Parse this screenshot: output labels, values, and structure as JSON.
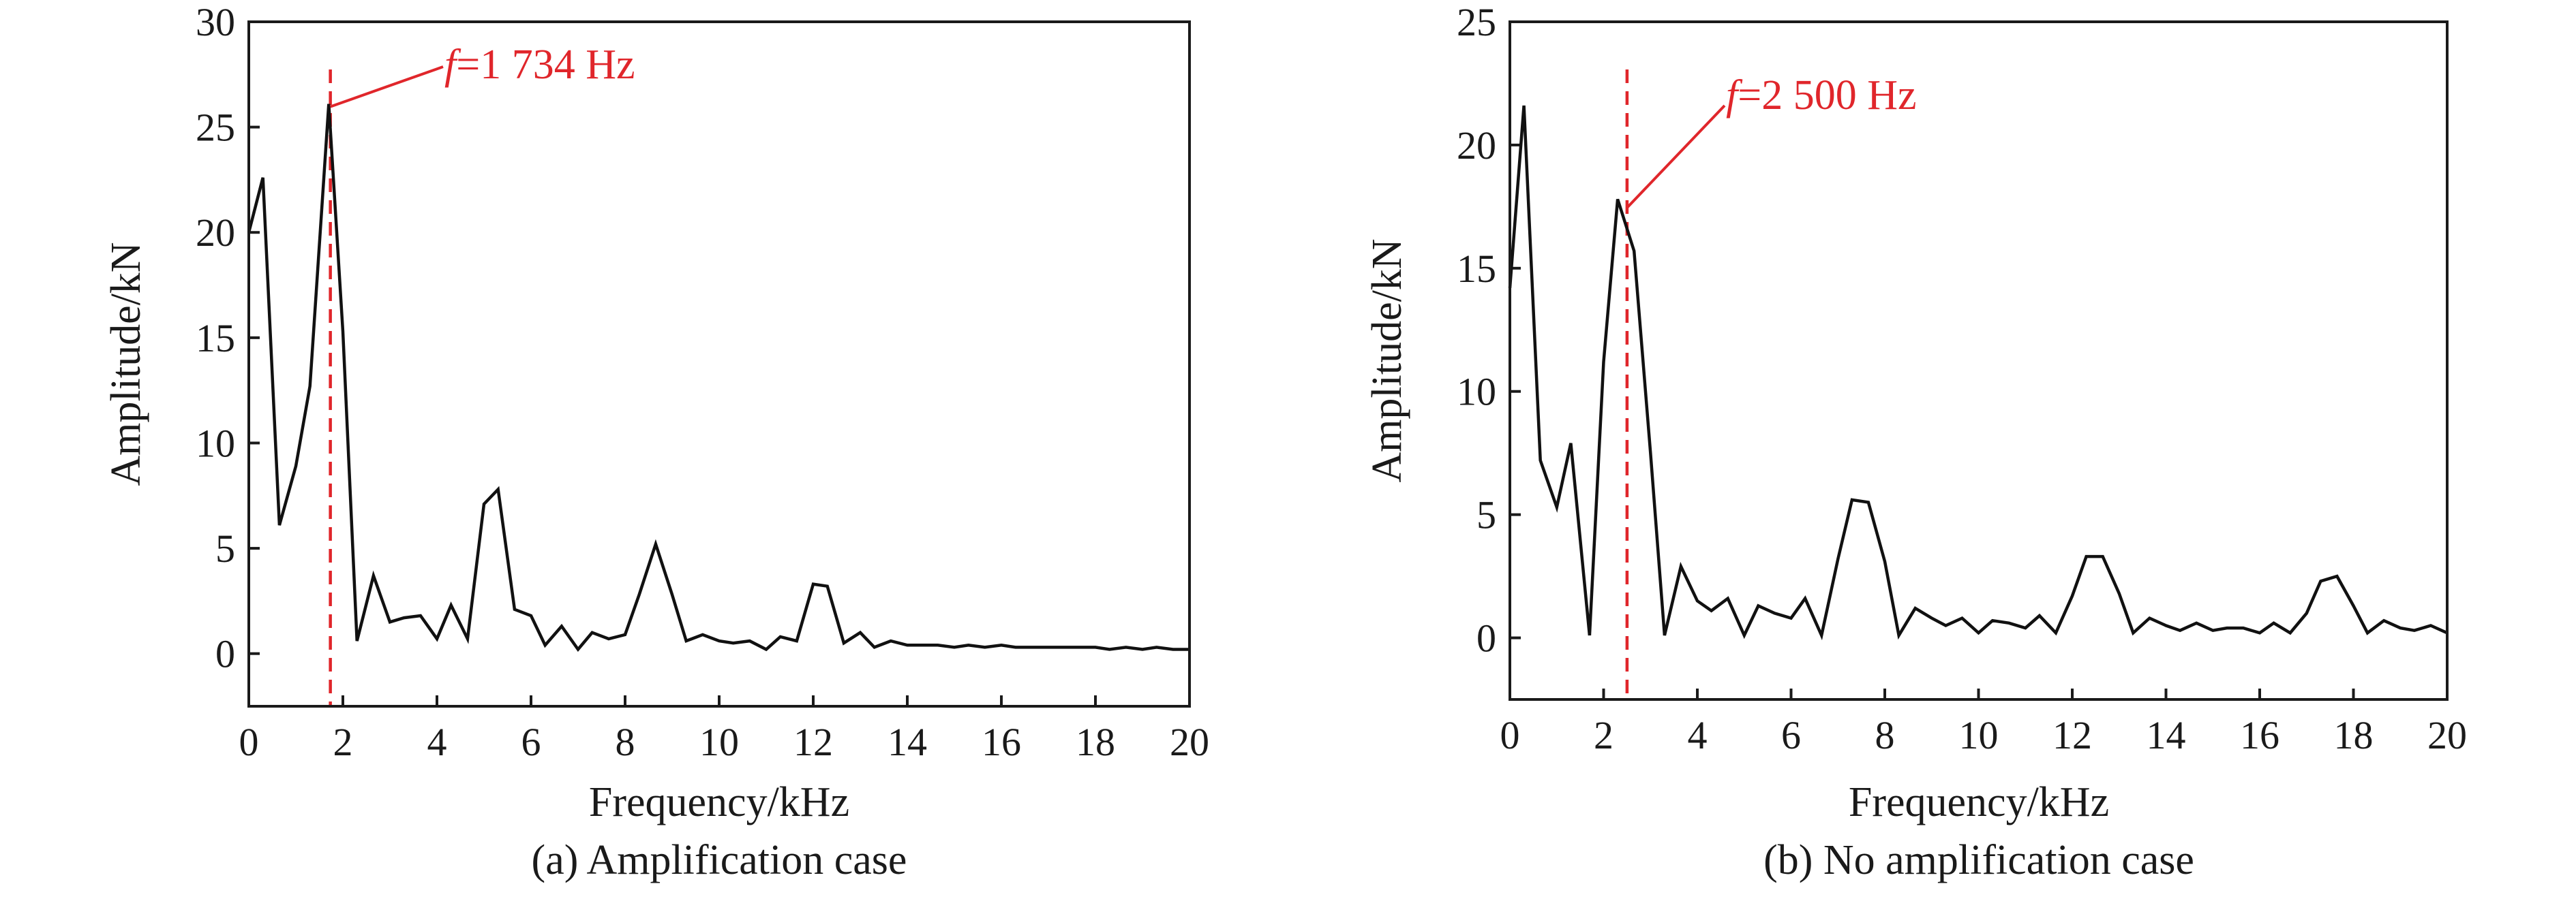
{
  "chart_data": [
    {
      "type": "line",
      "caption": "(a) Amplification case",
      "xlabel": "Frequency/kHz",
      "ylabel": "Amplitude/kN",
      "xlim": [
        0,
        20
      ],
      "ylim": [
        -2.5,
        30
      ],
      "xticks": [
        0,
        2,
        4,
        6,
        8,
        10,
        12,
        14,
        16,
        18,
        20
      ],
      "yticks": [
        0,
        5,
        10,
        15,
        20,
        25,
        30
      ],
      "grid": false,
      "marker": {
        "x": 1.734,
        "symbol": "f",
        "text": "=1 734 Hz"
      },
      "x": [
        0,
        0.3,
        0.65,
        1,
        1.3,
        1.7,
        2,
        2.3,
        2.65,
        3,
        3.3,
        3.65,
        4,
        4.3,
        4.65,
        5,
        5.3,
        5.65,
        6,
        6.3,
        6.65,
        7,
        7.3,
        7.65,
        8,
        8.3,
        8.65,
        9,
        9.3,
        9.65,
        10,
        10.3,
        10.65,
        11,
        11.3,
        11.65,
        12,
        12.3,
        12.65,
        13,
        13.3,
        13.65,
        14,
        14.3,
        14.65,
        15,
        15.3,
        15.65,
        16,
        16.3,
        16.65,
        17,
        17.3,
        17.65,
        18,
        18.3,
        18.65,
        19,
        19.3,
        19.65,
        20
      ],
      "y": [
        20,
        22.6,
        6.1,
        8.9,
        12.7,
        26.1,
        15.3,
        0.6,
        3.7,
        1.5,
        1.7,
        1.8,
        0.7,
        2.3,
        0.7,
        7.1,
        7.8,
        2.1,
        1.8,
        0.4,
        1.3,
        0.2,
        1.0,
        0.7,
        0.9,
        2.8,
        5.2,
        2.8,
        0.6,
        0.9,
        0.6,
        0.5,
        0.6,
        0.2,
        0.8,
        0.6,
        3.3,
        3.2,
        0.5,
        1.0,
        0.3,
        0.6,
        0.4,
        0.4,
        0.4,
        0.3,
        0.4,
        0.3,
        0.4,
        0.3,
        0.3,
        0.3,
        0.3,
        0.3,
        0.3,
        0.2,
        0.3,
        0.2,
        0.3,
        0.2,
        0.2
      ]
    },
    {
      "type": "line",
      "caption": "(b) No amplification case",
      "xlabel": "Frequency/kHz",
      "ylabel": "Amplitude/kN",
      "xlim": [
        0,
        20
      ],
      "ylim": [
        -2.5,
        25
      ],
      "xticks": [
        0,
        2,
        4,
        6,
        8,
        10,
        12,
        14,
        16,
        18,
        20
      ],
      "yticks": [
        0,
        5,
        10,
        15,
        20,
        25
      ],
      "grid": false,
      "marker": {
        "x": 2.5,
        "symbol": "f",
        "text": "=2 500 Hz"
      },
      "x": [
        0,
        0.3,
        0.65,
        1,
        1.3,
        1.7,
        2,
        2.3,
        2.65,
        3,
        3.3,
        3.65,
        4,
        4.3,
        4.65,
        5,
        5.3,
        5.65,
        6,
        6.3,
        6.65,
        7,
        7.3,
        7.65,
        8,
        8.3,
        8.65,
        9,
        9.3,
        9.65,
        10,
        10.3,
        10.65,
        11,
        11.3,
        11.65,
        12,
        12.3,
        12.65,
        13,
        13.3,
        13.65,
        14,
        14.3,
        14.65,
        15,
        15.3,
        15.65,
        16,
        16.3,
        16.65,
        17,
        17.3,
        17.65,
        18,
        18.3,
        18.65,
        19,
        19.3,
        19.65,
        20
      ],
      "y": [
        14.2,
        21.6,
        7.2,
        5.3,
        7.9,
        0.1,
        11.2,
        17.8,
        15.7,
        7.5,
        0.1,
        2.9,
        1.5,
        1.1,
        1.6,
        0.1,
        1.3,
        1.0,
        0.8,
        1.6,
        0.1,
        3.2,
        5.6,
        5.5,
        3.1,
        0.1,
        1.2,
        0.8,
        0.5,
        0.8,
        0.2,
        0.7,
        0.6,
        0.4,
        0.9,
        0.2,
        1.7,
        3.3,
        3.3,
        1.8,
        0.2,
        0.8,
        0.5,
        0.3,
        0.6,
        0.3,
        0.4,
        0.4,
        0.2,
        0.6,
        0.2,
        1.0,
        2.3,
        2.5,
        1.3,
        0.2,
        0.7,
        0.4,
        0.3,
        0.5,
        0.2
      ]
    }
  ]
}
